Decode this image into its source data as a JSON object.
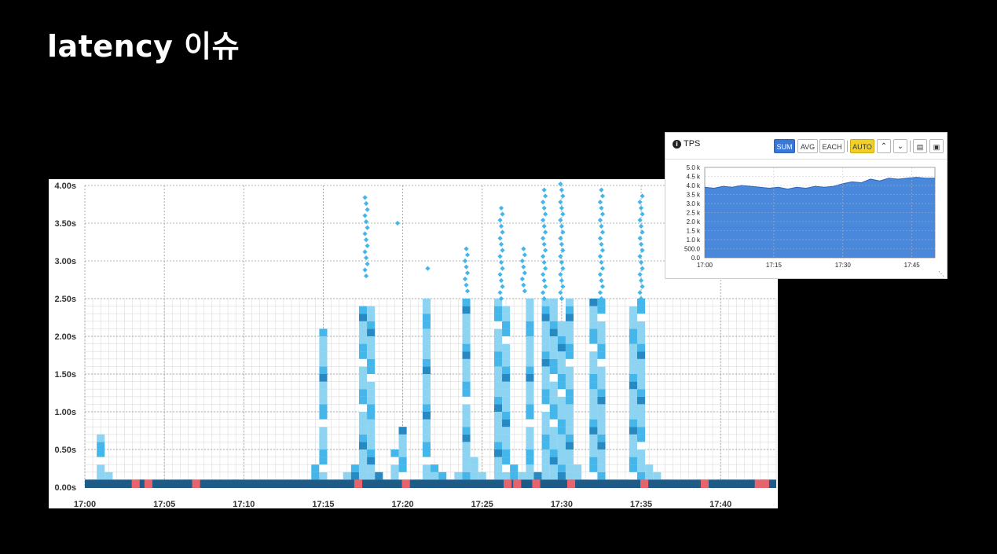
{
  "page": {
    "title": "latency 이슈"
  },
  "heatmap": {
    "colors": {
      "light": "#8dd3f2",
      "medium": "#45b6ea",
      "dark": "#2789c2",
      "darkest": "#1e5c87",
      "error": "#e8646c",
      "grid": "#cccccc",
      "cell_grid": "#dcdcdc"
    },
    "chart_data": {
      "type": "heatmap",
      "title": "",
      "xlabel": "",
      "ylabel": "",
      "x_ticks": [
        "17:00",
        "17:05",
        "17:10",
        "17:15",
        "17:20",
        "17:25",
        "17:30",
        "17:35",
        "17:40"
      ],
      "y_ticks": [
        "0.00s",
        "0.50s",
        "1.00s",
        "1.50s",
        "2.00s",
        "2.50s",
        "3.00s",
        "3.50s",
        "4.00s"
      ],
      "x_range_minutes": [
        0,
        43.5
      ],
      "y_range_seconds": [
        0,
        4.0
      ],
      "cell_size_seconds": 0.1,
      "columns": [
        {
          "t": 0.5,
          "max": 0.1
        },
        {
          "t": 1.0,
          "max": 0.7
        },
        {
          "t": 1.5,
          "max": 0.2
        },
        {
          "t": 3.5,
          "max": 0.1
        },
        {
          "t": 4.5,
          "max": 0.1
        },
        {
          "t": 6.0,
          "max": 0.1
        },
        {
          "t": 6.5,
          "max": 0.1
        },
        {
          "t": 7.0,
          "max": 0.1
        },
        {
          "t": 8.0,
          "max": 0.1
        },
        {
          "t": 9.0,
          "max": 0.1
        },
        {
          "t": 9.5,
          "max": 0.1
        },
        {
          "t": 13.0,
          "max": 0.1
        },
        {
          "t": 14.5,
          "max": 0.3
        },
        {
          "t": 15.0,
          "max": 0.7
        },
        {
          "t": 15.0,
          "max": 2.1
        },
        {
          "t": 15.5,
          "max": 0.1
        },
        {
          "t": 16.0,
          "max": 0.1
        },
        {
          "t": 16.5,
          "max": 0.2
        },
        {
          "t": 17.0,
          "max": 0.3
        },
        {
          "t": 17.5,
          "max": 2.4
        },
        {
          "t": 18.0,
          "max": 2.4
        },
        {
          "t": 18.5,
          "max": 0.2
        },
        {
          "t": 19.0,
          "max": 0.1
        },
        {
          "t": 19.5,
          "max": 0.5
        },
        {
          "t": 20.0,
          "max": 0.8
        },
        {
          "t": 21.0,
          "max": 0.1
        },
        {
          "t": 21.5,
          "max": 2.5
        },
        {
          "t": 22.0,
          "max": 0.3
        },
        {
          "t": 22.5,
          "max": 0.2
        },
        {
          "t": 23.0,
          "max": 0.1
        },
        {
          "t": 23.5,
          "max": 0.2
        },
        {
          "t": 24.0,
          "max": 2.5
        },
        {
          "t": 24.5,
          "max": 0.4
        },
        {
          "t": 25.0,
          "max": 0.2
        },
        {
          "t": 25.5,
          "max": 0.1
        },
        {
          "t": 26.0,
          "max": 2.5
        },
        {
          "t": 26.5,
          "max": 2.4
        },
        {
          "t": 27.0,
          "max": 0.3
        },
        {
          "t": 27.5,
          "max": 0.2
        },
        {
          "t": 28.0,
          "max": 2.5
        },
        {
          "t": 28.5,
          "max": 0.2
        },
        {
          "t": 29.0,
          "max": 2.5
        },
        {
          "t": 29.5,
          "max": 2.5
        },
        {
          "t": 30.0,
          "max": 2.2
        },
        {
          "t": 30.5,
          "max": 2.5
        },
        {
          "t": 31.0,
          "max": 0.3
        },
        {
          "t": 32.0,
          "max": 2.5
        },
        {
          "t": 32.5,
          "max": 2.5
        },
        {
          "t": 33.0,
          "max": 0.1
        },
        {
          "t": 34.5,
          "max": 2.5
        },
        {
          "t": 35.0,
          "max": 2.5
        },
        {
          "t": 35.5,
          "max": 0.3
        },
        {
          "t": 36.0,
          "max": 0.2
        },
        {
          "t": 36.5,
          "max": 0.1
        },
        {
          "t": 38.5,
          "max": 0.1
        },
        {
          "t": 39.0,
          "max": 0.1
        },
        {
          "t": 40.0,
          "max": 0.1
        },
        {
          "t": 40.5,
          "max": 0.1
        },
        {
          "t": 41.0,
          "max": 0.1
        },
        {
          "t": 41.5,
          "max": 0.1
        },
        {
          "t": 42.0,
          "max": 0.1
        },
        {
          "t": 43.0,
          "max": 0.1
        }
      ],
      "outliers": [
        {
          "t": 17.7,
          "from": 2.8,
          "to": 3.9
        },
        {
          "t": 19.6,
          "from": 3.5,
          "to": 3.5
        },
        {
          "t": 21.5,
          "from": 2.9,
          "to": 2.9
        },
        {
          "t": 24.0,
          "from": 2.6,
          "to": 3.2
        },
        {
          "t": 26.2,
          "from": 2.5,
          "to": 3.7
        },
        {
          "t": 27.6,
          "from": 2.6,
          "to": 3.2
        },
        {
          "t": 28.9,
          "from": 2.5,
          "to": 4.0
        },
        {
          "t": 30.0,
          "from": 2.5,
          "to": 4.05
        },
        {
          "t": 32.5,
          "from": 2.5,
          "to": 4.0
        },
        {
          "t": 35.0,
          "from": 2.5,
          "to": 3.9
        }
      ],
      "error_marks_minutes": [
        3.2,
        4.0,
        7.0,
        17.2,
        20.2,
        26.6,
        27.2,
        28.4,
        30.6,
        35.2,
        39.0,
        42.4,
        42.8
      ]
    }
  },
  "tps": {
    "title": "TPS",
    "info_icon": "info-icon",
    "buttons": {
      "sum": "SUM",
      "avg": "AVG",
      "each": "EACH",
      "auto": "AUTO"
    },
    "colors": {
      "area": "#4a88dc",
      "line": "#2f66b8",
      "sum_bg": "#3a78d8",
      "auto_bg": "#f2d02b"
    },
    "chart_data": {
      "type": "area",
      "title": "",
      "xlabel": "",
      "ylabel": "",
      "x_ticks": [
        "17:00",
        "17:15",
        "17:30",
        "17:45"
      ],
      "y_ticks": [
        "0.0",
        "500.0",
        "1.0 k",
        "1.5 k",
        "2.0 k",
        "2.5 k",
        "3.0 k",
        "3.5 k",
        "4.0 k",
        "4.5 k",
        "5.0 k"
      ],
      "ylim": [
        0,
        5000
      ],
      "x_range_minutes": [
        0,
        50
      ],
      "x": [
        0,
        2,
        4,
        6,
        8,
        10,
        12,
        14,
        16,
        18,
        20,
        22,
        24,
        26,
        28,
        30,
        32,
        34,
        36,
        38,
        40,
        42,
        44,
        46,
        48,
        50
      ],
      "values": [
        3900,
        3850,
        3950,
        3900,
        4000,
        3950,
        3900,
        3850,
        3900,
        3800,
        3900,
        3850,
        3950,
        3900,
        3950,
        4100,
        4200,
        4150,
        4350,
        4250,
        4400,
        4350,
        4400,
        4450,
        4400,
        4400
      ]
    }
  }
}
